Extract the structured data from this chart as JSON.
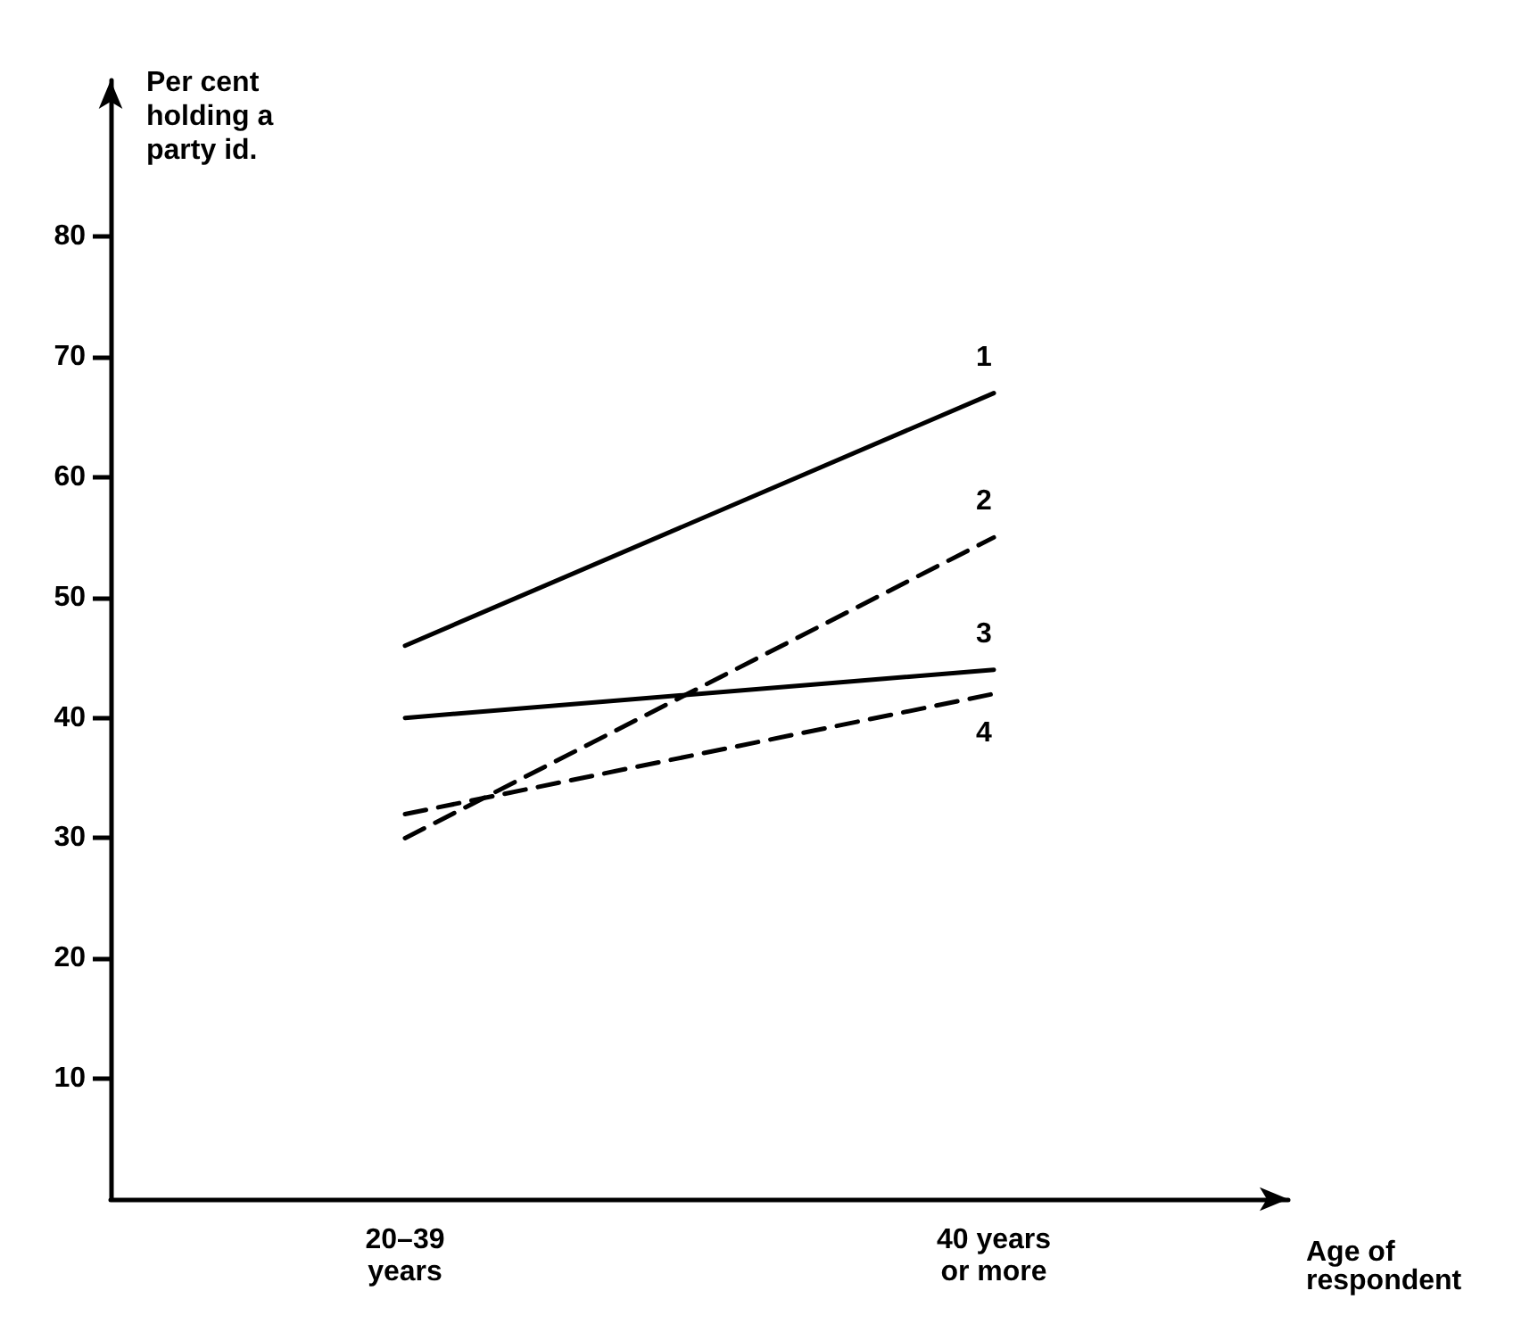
{
  "chart_data": {
    "type": "line",
    "ylabel": "Per cent\nholding a\nparty id.",
    "xlabel": "Age of\nrespondent",
    "categories": [
      "20–39\nyears",
      "40 years\nor more"
    ],
    "series": [
      {
        "name": "1",
        "color": "#000000",
        "values": [
          46,
          67
        ],
        "line_style": "solid"
      },
      {
        "name": "2",
        "color": "#000000",
        "values": [
          30,
          55
        ],
        "line_style": "dashed"
      },
      {
        "name": "3",
        "color": "#000000",
        "values": [
          40,
          44
        ],
        "line_style": "solid"
      },
      {
        "name": "4",
        "color": "#000000",
        "values": [
          32,
          42
        ],
        "line_style": "dashed"
      }
    ],
    "ylim": [
      0,
      93
    ],
    "yticks": [
      10,
      20,
      30,
      40,
      50,
      60,
      70,
      80
    ],
    "grid": false,
    "legend": false,
    "marker": "none"
  }
}
